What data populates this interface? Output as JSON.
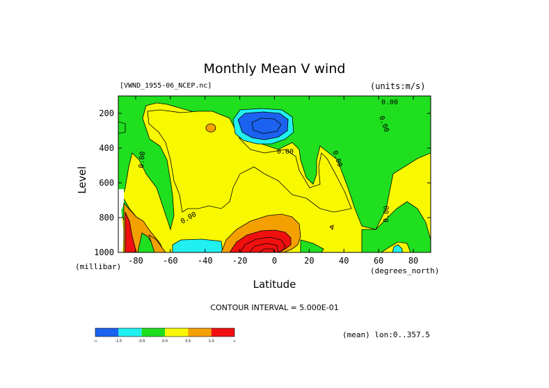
{
  "chart_data": {
    "type": "heatmap",
    "title": "Monthly Mean V wind",
    "file_label": "[VWND_1955-06_NCEP.nc]",
    "units_label": "(units:m/s)",
    "ylabel": "Level",
    "yunit": "(millibar)",
    "xlabel": "Latitude",
    "xunit": "(degrees_north)",
    "xlim": [
      -90,
      90
    ],
    "ylim": [
      1000,
      100
    ],
    "xticks": [
      "-80",
      "-60",
      "-40",
      "-20",
      "0",
      "20",
      "40",
      "60",
      "80"
    ],
    "xtick_values": [
      -80,
      -60,
      -40,
      -20,
      0,
      20,
      40,
      60,
      80
    ],
    "yticks": [
      "200",
      "400",
      "600",
      "800",
      "1000"
    ],
    "ytick_values": [
      200,
      400,
      600,
      800,
      1000
    ],
    "contour_interval": "CONTOUR INTERVAL = 5.000E-01",
    "contour_labels": [
      "0.00",
      "0.00",
      "0.00",
      "0.00",
      "0.00",
      "0.00",
      "0.00"
    ],
    "mean_label": "(mean) lon:0..357.5",
    "colorbar": {
      "colors": [
        "#1c62f0",
        "#21f0f0",
        "#1fdf1f",
        "#f8f800",
        "#f4a000",
        "#f01010"
      ],
      "labels": [
        "-∞",
        "-1.5",
        "-0.5",
        "0.0",
        "0.5",
        "1.0",
        "∞"
      ]
    },
    "levels_color_map": {
      "lt_-1.5": "#1c62f0",
      "-1.5_to_-0.5": "#21f0f0",
      "-0.5_to_0": "#1fdf1f",
      "0_to_0.5": "#f8f800",
      "0.5_to_1.0": "#f4a000",
      "gt_1.0": "#f01010"
    },
    "features": [
      {
        "lat": -8,
        "level": 180,
        "value": -2.0
      },
      {
        "lat": -5,
        "level": 950,
        "value": 1.8
      },
      {
        "lat": -78,
        "level": 950,
        "value": 1.5
      },
      {
        "lat": -50,
        "level": 950,
        "value": -0.8
      },
      {
        "lat": 40,
        "level": 300,
        "value": 0.3
      },
      {
        "lat": -10,
        "level": 650,
        "value": 0.3
      },
      {
        "lat": 70,
        "level": 700,
        "value": -0.2
      }
    ]
  }
}
